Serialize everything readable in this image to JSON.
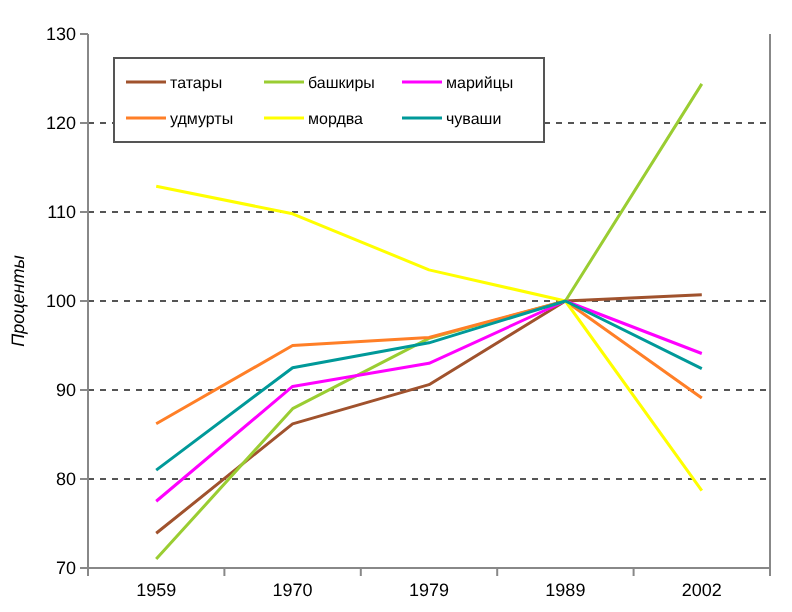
{
  "chart_data": {
    "type": "line",
    "ylabel": "Проценты",
    "categories": [
      "1959",
      "1970",
      "1979",
      "1989",
      "2002"
    ],
    "series": [
      {
        "name": "татары",
        "color": "#a0522d",
        "values": [
          73.9,
          86.2,
          90.6,
          100,
          100.7
        ]
      },
      {
        "name": "башкиры",
        "color": "#9acd32",
        "values": [
          71.0,
          87.9,
          95.8,
          100,
          124.4
        ]
      },
      {
        "name": "марийцы",
        "color": "#ff00ff",
        "values": [
          77.5,
          90.4,
          93.0,
          100,
          94.1
        ]
      },
      {
        "name": "удмурты",
        "color": "#ff7f27",
        "values": [
          86.2,
          95.0,
          95.9,
          100,
          89.1
        ]
      },
      {
        "name": "мордва",
        "color": "#ffff00",
        "values": [
          112.9,
          109.8,
          103.5,
          100,
          78.7
        ]
      },
      {
        "name": "чуваши",
        "color": "#009999",
        "values": [
          81.0,
          92.5,
          95.3,
          100,
          92.4
        ]
      }
    ],
    "ylim": [
      70,
      130
    ],
    "yticks": [
      70,
      80,
      90,
      100,
      110,
      120,
      130
    ],
    "grid": "y",
    "legend": "top left",
    "marker": "none",
    "line_style": "solid"
  }
}
